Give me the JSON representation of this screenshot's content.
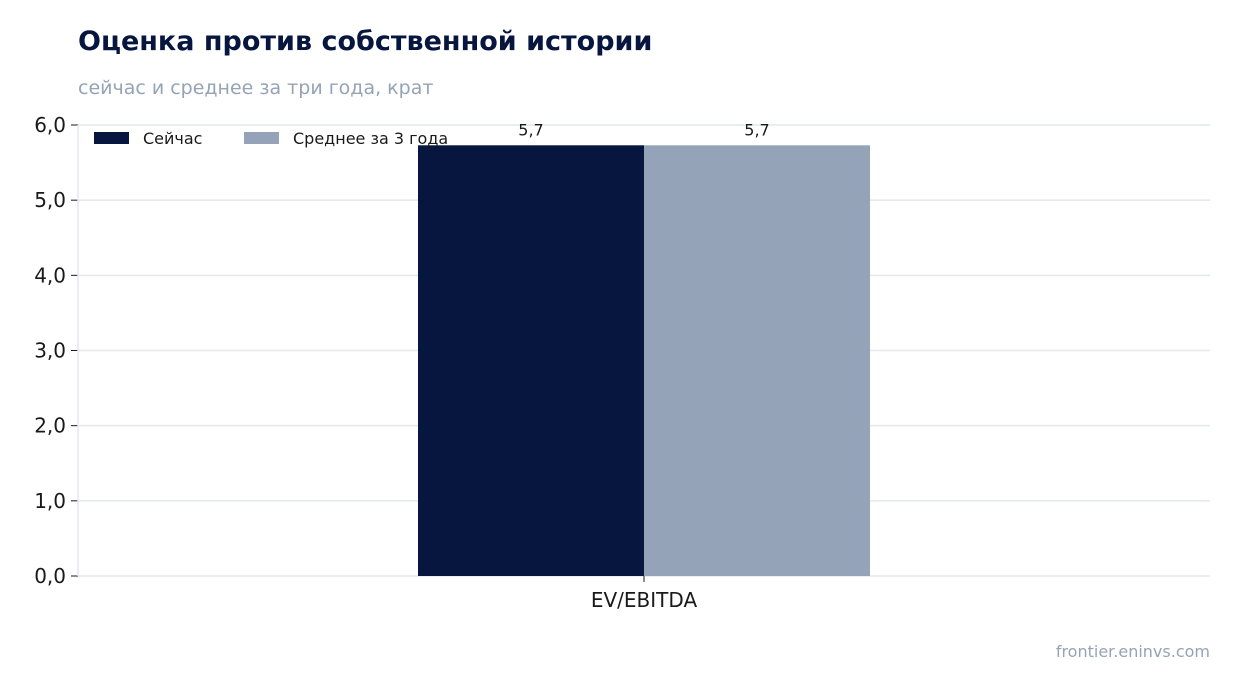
{
  "header": {
    "title": "Оценка против собственной истории",
    "subtitle": "сейчас и среднее за три года, крат"
  },
  "footer": {
    "source": "frontier.eninvs.com"
  },
  "colors": {
    "series_now": "#06163f",
    "series_avg": "#94a3b8",
    "grid": "#e3e7ee",
    "axis": "#1a1a1a"
  },
  "chart_data": {
    "type": "bar",
    "categories": [
      "EV/EBITDA"
    ],
    "series": [
      {
        "name": "Сейчас",
        "values": [
          5.73
        ],
        "value_labels": [
          "5,7"
        ]
      },
      {
        "name": "Среднее за 3 года",
        "values": [
          5.73
        ],
        "value_labels": [
          "5,7"
        ]
      }
    ],
    "ylim": [
      0,
      6
    ],
    "yticks": [
      0,
      1,
      2,
      3,
      4,
      5,
      6
    ],
    "ytick_labels": [
      "0,0",
      "1,0",
      "2,0",
      "3,0",
      "4,0",
      "5,0",
      "6,0"
    ],
    "grid": true,
    "legend_position": "top-left"
  }
}
